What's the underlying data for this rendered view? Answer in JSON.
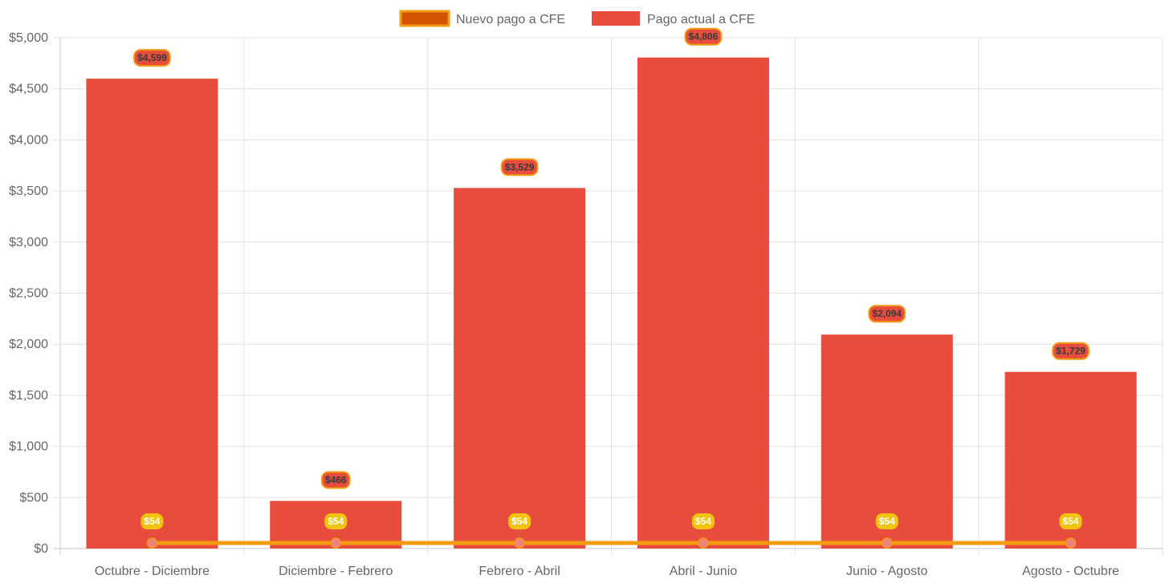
{
  "chart_data": {
    "type": "bar",
    "categories": [
      "Octubre - Diciembre",
      "Diciembre - Febrero",
      "Febrero - Abril",
      "Abril - Junio",
      "Junio - Agosto",
      "Agosto - Octubre"
    ],
    "series": [
      {
        "name": "Nuevo pago a CFE",
        "type": "line",
        "values": [
          54,
          54,
          54,
          54,
          54,
          54
        ],
        "labels": [
          "$54",
          "$54",
          "$54",
          "$54",
          "$54",
          "$54"
        ],
        "color": "#f39c12",
        "point_color": "#f08080",
        "legend_fill": "#d35400",
        "label_bg": "#f1c40f"
      },
      {
        "name": "Pago actual a CFE",
        "type": "bar",
        "values": [
          4599,
          466,
          3529,
          4806,
          2094,
          1729
        ],
        "labels": [
          "$4,599",
          "$466",
          "$3,529",
          "$4,806",
          "$2,094",
          "$1,729"
        ],
        "color": "#e74c3c",
        "label_border": "#f39c12"
      }
    ],
    "y_ticks": [
      "$0",
      "$500",
      "$1,000",
      "$1,500",
      "$2,000",
      "$2,500",
      "$3,000",
      "$3,500",
      "$4,000",
      "$4,500",
      "$5,000"
    ],
    "ylim": [
      0,
      5000
    ],
    "y_step": 500,
    "grid": true,
    "legend_position": "top-center",
    "title": "",
    "xlabel": "",
    "ylabel": ""
  }
}
